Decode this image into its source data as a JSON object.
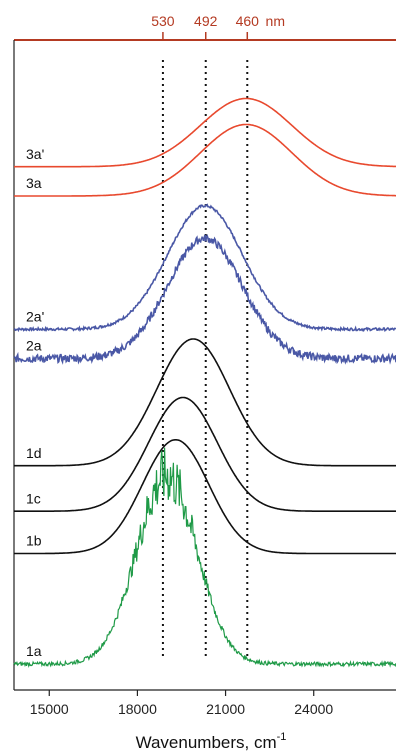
{
  "chart_data": {
    "type": "line",
    "xlabel": "Wavenumbers, cm",
    "xlabel_superscript": "-1",
    "xlim": [
      13800,
      26800
    ],
    "x_ticks": [
      15000,
      18000,
      21000,
      24000
    ],
    "x_tick_labels": [
      "15000",
      "18000",
      "21000",
      "24000"
    ],
    "top_axis": {
      "unit_label": "nm",
      "ticks": [
        {
          "label": "530",
          "wavenumber": 18868
        },
        {
          "label": "492",
          "wavenumber": 20325
        },
        {
          "label": "460",
          "wavenumber": 21739
        }
      ]
    },
    "reference_lines": [
      18868,
      20325,
      21739
    ],
    "colors": {
      "series_3": "#e8492e",
      "series_2": "#4a58a6",
      "series_1": "#111111",
      "series_1a": "#1f9a47",
      "top_axis": "#b43a22"
    },
    "series": [
      {
        "name": "3a'",
        "color": "#e8492e",
        "center": 21700,
        "width": 2200,
        "baseline": 0.805,
        "peak": 0.91,
        "noise": 0
      },
      {
        "name": "3a",
        "color": "#e8492e",
        "center": 21700,
        "width": 2200,
        "baseline": 0.76,
        "peak": 0.87,
        "noise": 0
      },
      {
        "name": "2a'",
        "color": "#4a58a6",
        "center": 20300,
        "width": 1800,
        "baseline": 0.555,
        "peak": 0.745,
        "noise": 0.004
      },
      {
        "name": "2a",
        "color": "#4a58a6",
        "center": 20300,
        "width": 1800,
        "baseline": 0.51,
        "peak": 0.695,
        "noise": 0.012
      },
      {
        "name": "1d",
        "color": "#111111",
        "center": 19900,
        "width": 1750,
        "baseline": 0.345,
        "peak": 0.54,
        "noise": 0
      },
      {
        "name": "1c",
        "color": "#111111",
        "center": 19550,
        "width": 1650,
        "baseline": 0.275,
        "peak": 0.45,
        "noise": 0
      },
      {
        "name": "1b",
        "color": "#111111",
        "center": 19300,
        "width": 1600,
        "baseline": 0.21,
        "peak": 0.385,
        "noise": 0
      },
      {
        "name": "1a",
        "color": "#1f9a47",
        "center": 19000,
        "width": 1450,
        "baseline": 0.04,
        "peak": 0.33,
        "noise": 0.03
      }
    ]
  }
}
